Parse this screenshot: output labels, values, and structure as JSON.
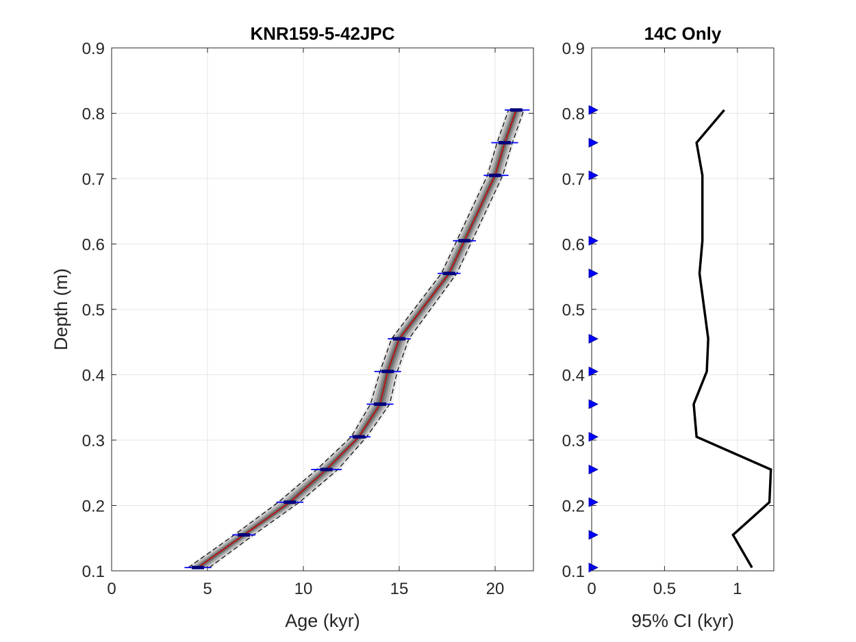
{
  "chart_data": [
    {
      "type": "line",
      "title": "KNR159-5-42JPC",
      "xlabel": "Age (kyr)",
      "ylabel": "Depth (m)",
      "xlim": [
        0,
        22
      ],
      "ylim": [
        0.1,
        0.9
      ],
      "xticks": [
        0,
        5,
        10,
        15,
        20
      ],
      "yticks": [
        0.1,
        0.2,
        0.3,
        0.4,
        0.5,
        0.6,
        0.7,
        0.8,
        0.9
      ],
      "xtick_labels": [
        "0",
        "5",
        "10",
        "15",
        "20"
      ],
      "ytick_labels": [
        "0.1",
        "0.2",
        "0.3",
        "0.4",
        "0.5",
        "0.6",
        "0.7",
        "0.8",
        "0.9"
      ],
      "grid": true,
      "series": [
        {
          "role": "median_age_model",
          "color": "#cc0000",
          "depth": [
            0.105,
            0.155,
            0.205,
            0.255,
            0.305,
            0.355,
            0.405,
            0.455,
            0.555,
            0.605,
            0.705,
            0.755,
            0.805
          ],
          "age": [
            4.5,
            6.9,
            9.3,
            11.2,
            12.9,
            14.0,
            14.4,
            15.0,
            17.6,
            18.4,
            20.0,
            20.5,
            21.1
          ]
        },
        {
          "role": "lower_bound",
          "style": "dashed",
          "color": "#000000",
          "depth": [
            0.105,
            0.155,
            0.205,
            0.255,
            0.305,
            0.355,
            0.405,
            0.455,
            0.555,
            0.605,
            0.705,
            0.755,
            0.805
          ],
          "age": [
            4.0,
            6.4,
            8.7,
            10.7,
            12.5,
            13.5,
            14.0,
            14.6,
            17.2,
            18.0,
            19.6,
            20.1,
            20.7
          ]
        },
        {
          "role": "upper_bound",
          "style": "dashed",
          "color": "#000000",
          "depth": [
            0.105,
            0.155,
            0.205,
            0.255,
            0.305,
            0.355,
            0.405,
            0.455,
            0.555,
            0.605,
            0.705,
            0.755,
            0.805
          ],
          "age": [
            5.1,
            7.4,
            9.8,
            11.8,
            13.3,
            14.5,
            14.9,
            15.5,
            18.0,
            18.8,
            20.4,
            20.9,
            21.5
          ]
        }
      ],
      "dates": {
        "color": "#0000ff",
        "depth": [
          0.105,
          0.155,
          0.205,
          0.255,
          0.305,
          0.355,
          0.405,
          0.455,
          0.555,
          0.605,
          0.705,
          0.755,
          0.805
        ],
        "age": [
          4.5,
          6.9,
          9.3,
          11.2,
          12.9,
          14.0,
          14.4,
          15.0,
          17.6,
          18.4,
          20.0,
          20.5,
          21.1
        ],
        "age_low": [
          3.8,
          6.3,
          8.6,
          10.4,
          12.4,
          13.3,
          13.7,
          14.4,
          17.0,
          17.8,
          19.4,
          19.8,
          20.5
        ],
        "age_high": [
          5.2,
          7.5,
          10.0,
          12.0,
          13.5,
          14.7,
          15.1,
          15.6,
          18.2,
          19.0,
          20.7,
          21.2,
          21.8
        ]
      }
    },
    {
      "type": "line",
      "title": "14C Only",
      "xlabel": "95% CI (kyr)",
      "ylabel": "",
      "xlim": [
        0,
        1.25
      ],
      "ylim": [
        0.1,
        0.9
      ],
      "xticks": [
        0,
        0.5,
        1
      ],
      "yticks": [
        0.1,
        0.2,
        0.3,
        0.4,
        0.5,
        0.6,
        0.7,
        0.8,
        0.9
      ],
      "xtick_labels": [
        "0",
        "0.5",
        "1"
      ],
      "ytick_labels": [
        "0.1",
        "0.2",
        "0.3",
        "0.4",
        "0.5",
        "0.6",
        "0.7",
        "0.8",
        "0.9"
      ],
      "grid": true,
      "series": [
        {
          "color": "#000000",
          "depth": [
            0.105,
            0.155,
            0.205,
            0.255,
            0.305,
            0.355,
            0.405,
            0.455,
            0.555,
            0.605,
            0.705,
            0.755,
            0.805
          ],
          "ci": [
            1.1,
            0.97,
            1.22,
            1.23,
            0.72,
            0.7,
            0.79,
            0.8,
            0.74,
            0.76,
            0.76,
            0.72,
            0.91
          ]
        }
      ],
      "markers": {
        "shape": "triangle-right",
        "color": "#0000ff",
        "depth": [
          0.105,
          0.155,
          0.205,
          0.255,
          0.305,
          0.355,
          0.405,
          0.455,
          0.555,
          0.605,
          0.705,
          0.755,
          0.805
        ]
      }
    }
  ]
}
